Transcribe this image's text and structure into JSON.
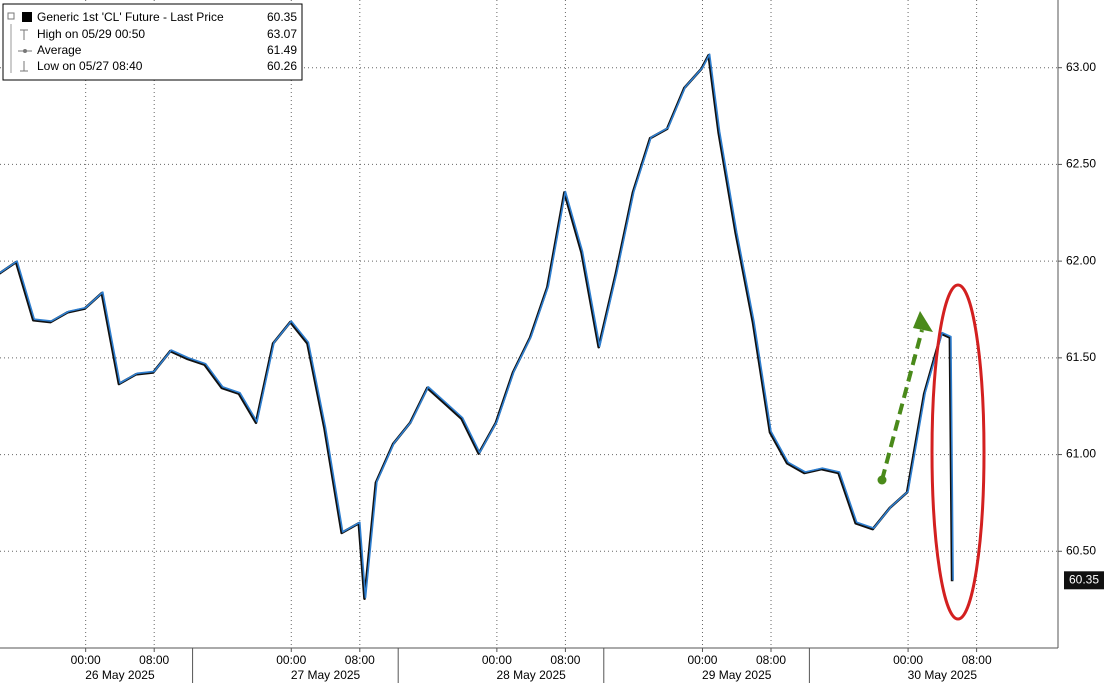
{
  "chart_data": {
    "type": "line",
    "series": [
      {
        "name": "Generic 1st 'CL' Future - Last Price",
        "color": "#2f7fd0",
        "x": [
          "2025-05-25T14:00",
          "2025-05-25T16:00",
          "2025-05-25T18:00",
          "2025-05-25T20:00",
          "2025-05-25T22:00",
          "2025-05-26T00:00",
          "2025-05-26T02:00",
          "2025-05-26T04:00",
          "2025-05-26T06:00",
          "2025-05-26T08:00",
          "2025-05-26T10:00",
          "2025-05-26T12:00",
          "2025-05-26T14:00",
          "2025-05-26T16:00",
          "2025-05-26T18:00",
          "2025-05-26T20:00",
          "2025-05-26T22:00",
          "2025-05-27T00:00",
          "2025-05-27T02:00",
          "2025-05-27T04:00",
          "2025-05-27T06:00",
          "2025-05-27T08:00",
          "2025-05-27T08:40",
          "2025-05-27T10:00",
          "2025-05-27T12:00",
          "2025-05-27T14:00",
          "2025-05-27T16:00",
          "2025-05-27T18:00",
          "2025-05-27T20:00",
          "2025-05-27T22:00",
          "2025-05-28T00:00",
          "2025-05-28T02:00",
          "2025-05-28T04:00",
          "2025-05-28T06:00",
          "2025-05-28T08:00",
          "2025-05-28T10:00",
          "2025-05-28T12:00",
          "2025-05-28T14:00",
          "2025-05-28T16:00",
          "2025-05-28T18:00",
          "2025-05-28T20:00",
          "2025-05-28T22:00",
          "2025-05-29T00:00",
          "2025-05-29T00:50",
          "2025-05-29T02:00",
          "2025-05-29T04:00",
          "2025-05-29T06:00",
          "2025-05-29T08:00",
          "2025-05-29T10:00",
          "2025-05-29T12:00",
          "2025-05-29T14:00",
          "2025-05-29T16:00",
          "2025-05-29T18:00",
          "2025-05-29T20:00",
          "2025-05-29T22:00",
          "2025-05-30T00:00",
          "2025-05-30T02:00",
          "2025-05-30T04:00",
          "2025-05-30T05:00",
          "2025-05-30T05:15"
        ],
        "values": [
          61.94,
          62.0,
          61.7,
          61.69,
          61.74,
          61.76,
          61.84,
          61.37,
          61.42,
          61.43,
          61.54,
          61.5,
          61.47,
          61.35,
          61.32,
          61.17,
          61.58,
          61.69,
          61.58,
          61.14,
          60.6,
          60.65,
          60.26,
          60.86,
          61.06,
          61.17,
          61.35,
          61.27,
          61.19,
          61.01,
          61.17,
          61.43,
          61.61,
          61.87,
          62.36,
          62.05,
          61.56,
          61.94,
          62.36,
          62.64,
          62.69,
          62.9,
          63.0,
          63.07,
          62.67,
          62.15,
          61.69,
          61.12,
          60.96,
          60.91,
          60.93,
          60.91,
          60.65,
          60.62,
          60.73,
          60.81,
          61.32,
          61.63,
          61.61,
          60.35
        ]
      }
    ],
    "last_price": 60.35,
    "stats": [
      {
        "label": "High on 05/29 00:50",
        "value": 63.07
      },
      {
        "label": "Average",
        "value": 61.49
      },
      {
        "label": "Low on 05/27 08:40",
        "value": 60.26
      }
    ],
    "xlim": [
      "2025-05-25T14:00",
      "2025-05-30T17:30"
    ],
    "xticks": [
      {
        "value": "2025-05-26T00:00",
        "label": "00:00"
      },
      {
        "value": "2025-05-26T08:00",
        "label": "08:00"
      },
      {
        "value": "2025-05-27T00:00",
        "label": "00:00"
      },
      {
        "value": "2025-05-27T08:00",
        "label": "08:00"
      },
      {
        "value": "2025-05-28T00:00",
        "label": "00:00"
      },
      {
        "value": "2025-05-28T08:00",
        "label": "08:00"
      },
      {
        "value": "2025-05-29T00:00",
        "label": "00:00"
      },
      {
        "value": "2025-05-29T08:00",
        "label": "08:00"
      },
      {
        "value": "2025-05-30T00:00",
        "label": "00:00"
      },
      {
        "value": "2025-05-30T08:00",
        "label": "08:00"
      }
    ],
    "date_labels": [
      "26 May 2025",
      "27 May 2025",
      "28 May 2025",
      "29 May 2025",
      "30 May 2025"
    ],
    "ylim": [
      60.0,
      63.35
    ],
    "yticks": [
      {
        "value": 60.5,
        "label": "60.50"
      },
      {
        "value": 61,
        "label": "61.00"
      },
      {
        "value": 61.5,
        "label": "61.50"
      },
      {
        "value": 62,
        "label": "62.00"
      },
      {
        "value": 62.5,
        "label": "62.50"
      },
      {
        "value": 63,
        "label": "63.00"
      }
    ],
    "grid": true
  }
}
